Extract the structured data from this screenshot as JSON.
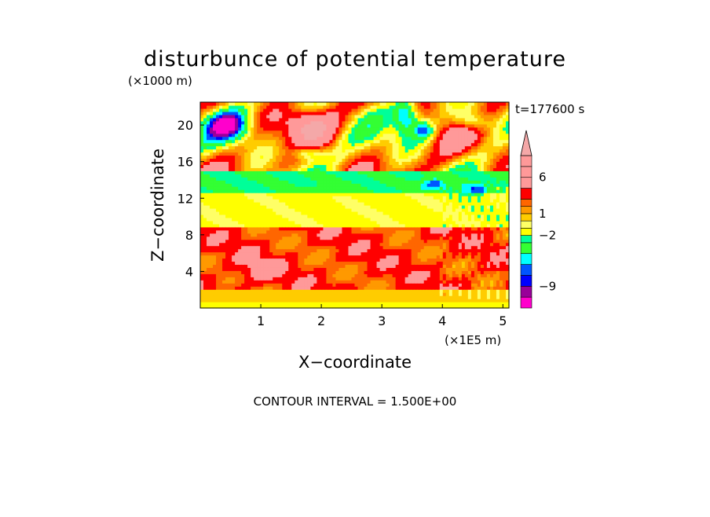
{
  "chart_data": {
    "type": "heatmap",
    "title": "disturbunce of potential temperature",
    "z_unit_label": "(×1000 m)",
    "x_unit_label": "(×1E5 m)",
    "xlabel": "X−coordinate",
    "ylabel": "Z−coordinate",
    "time_label": "t=177600 s",
    "footer": "CONTOUR INTERVAL = 1.500E+00",
    "xlim": [
      0,
      5.1
    ],
    "ylim": [
      0,
      22.5
    ],
    "x_ticks": [
      "1",
      "2",
      "3",
      "4",
      "5"
    ],
    "y_ticks": [
      "4",
      "8",
      "12",
      "16",
      "20"
    ],
    "colorbar": {
      "levels": [
        -12,
        -10.5,
        -9,
        -7.5,
        -6,
        -4.5,
        -3,
        -2,
        -1,
        0,
        1,
        2,
        3,
        4.5,
        6,
        7.5,
        9
      ],
      "colors": [
        "#ff00cc",
        "#990099",
        "#0000ff",
        "#0055ff",
        "#00ffff",
        "#33ff33",
        "#00ff99",
        "#ffff00",
        "#ffff66",
        "#ffcc00",
        "#ff9900",
        "#ff6600",
        "#ff0000",
        "#ff9999",
        "#ff9999"
      ],
      "tick_labels": [
        "6",
        "1",
        "−2",
        "−9"
      ],
      "tick_values": [
        6,
        1,
        -2,
        -9
      ],
      "extend_top_color": "#f4a8a8"
    },
    "field_description_colors": {
      "strong_negative": "#0000cc",
      "weak_negative": "#00ffff",
      "near_zero": "#33ff66",
      "weak_positive": "#ffff00",
      "moderate_positive": "#ffaa00",
      "strong_positive": "#ff0000"
    }
  }
}
